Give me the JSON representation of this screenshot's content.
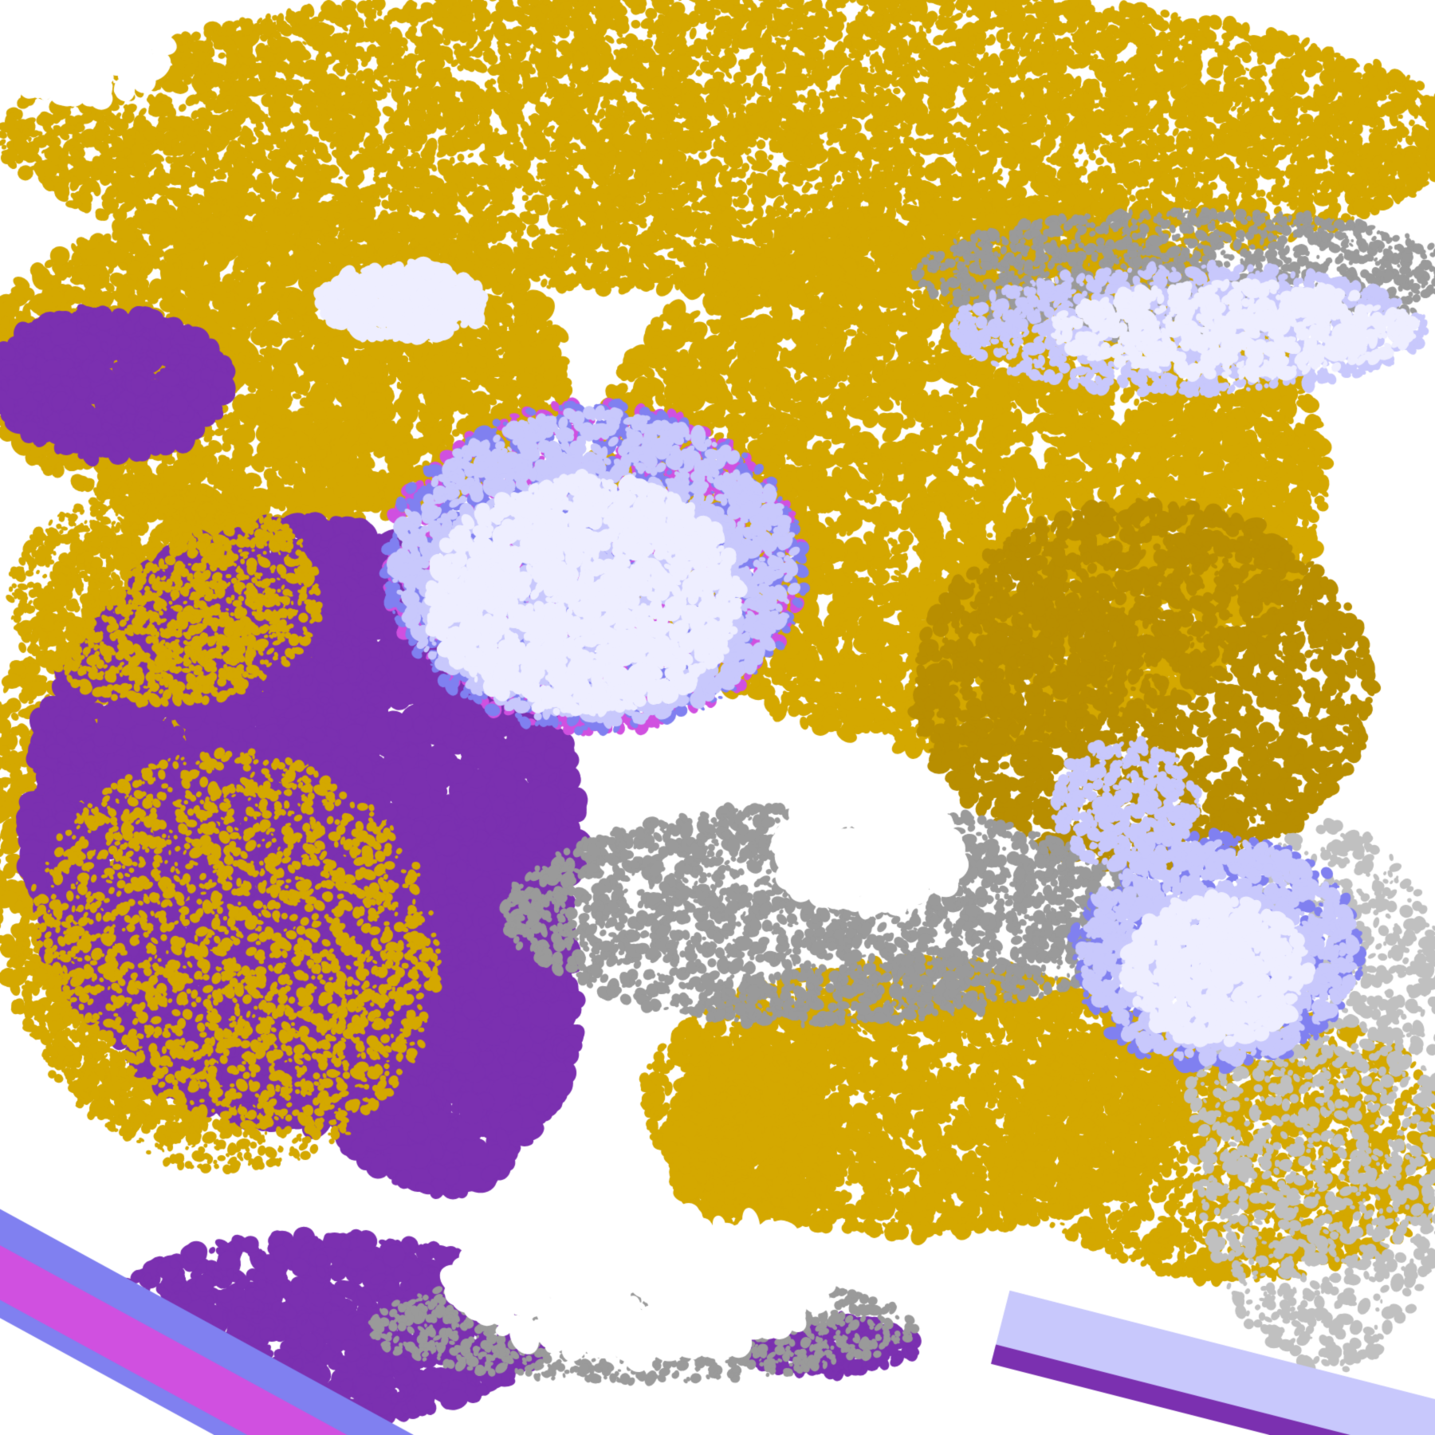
{
  "image": {
    "kind": "false-color satellite cloud classification",
    "palette": {
      "clear": "#ffffff",
      "gold": "#d4a800",
      "dark_gold": "#b88e00",
      "purple": "#7b30b0",
      "magenta": "#d050e0",
      "blue": "#8080f0",
      "lavender": "#c8c8fc",
      "pale": "#eeeeff",
      "gray": "#9a9a9a",
      "light_gray": "#c0c0c0"
    }
  }
}
